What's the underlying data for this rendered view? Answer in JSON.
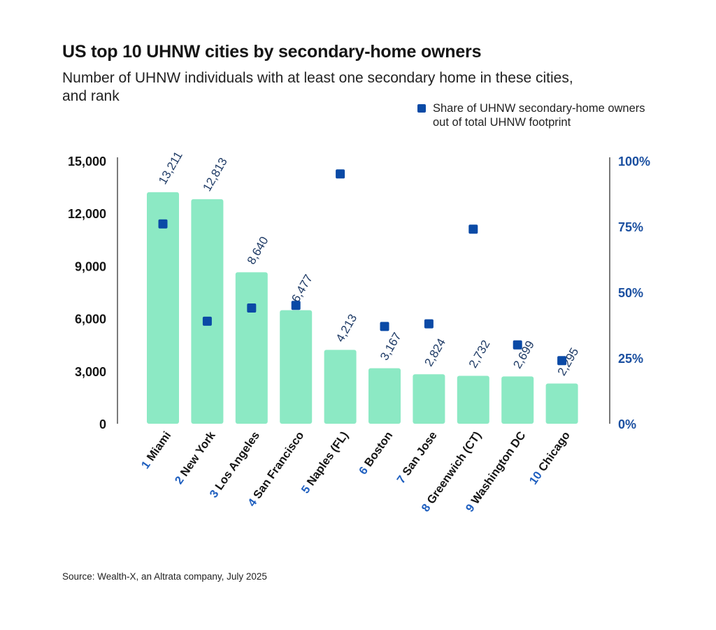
{
  "chart_data": {
    "type": "bar",
    "title": "US top 10 UHNW cities by secondary-home owners",
    "subtitle": "Number of UHNW individuals with at least one secondary home in these cities, and rank",
    "categories": [
      {
        "rank": "1",
        "name": "Miami"
      },
      {
        "rank": "2",
        "name": "New York"
      },
      {
        "rank": "3",
        "name": "Los Angeles"
      },
      {
        "rank": "4",
        "name": "San Francisco"
      },
      {
        "rank": "5",
        "name": "Naples (FL)"
      },
      {
        "rank": "6",
        "name": "Boston"
      },
      {
        "rank": "7",
        "name": "San Jose"
      },
      {
        "rank": "8",
        "name": "Greenwich (CT)"
      },
      {
        "rank": "9",
        "name": "Washington DC"
      },
      {
        "rank": "10",
        "name": "Chicago"
      }
    ],
    "bar_values": [
      13211,
      12813,
      8640,
      6477,
      4213,
      3167,
      2824,
      2732,
      2699,
      2295
    ],
    "bar_labels": [
      "13,211",
      "12,813",
      "8,640",
      "6,477",
      "4,213",
      "3,167",
      "2,824",
      "2,732",
      "2,699",
      "2,295"
    ],
    "share_series": {
      "name": "Share of UHNW secondary-home owners out of total UHNW footprint",
      "values": [
        76,
        39,
        44,
        45,
        95,
        37,
        38,
        74,
        30,
        24
      ]
    },
    "y_left": {
      "min": 0,
      "max": 15000,
      "ticks": [
        "0",
        "3,000",
        "6,000",
        "9,000",
        "12,000",
        "15,000"
      ]
    },
    "y_right": {
      "min": 0,
      "max": 100,
      "ticks": [
        "0%",
        "25%",
        "50%",
        "75%",
        "100%"
      ]
    },
    "legend_position": "top-right",
    "grid": false,
    "colors": {
      "bar": "#8ce9c4",
      "marker": "#0a4aa6",
      "rank": "#1f5fbf",
      "axis_text": "#151515",
      "right_axis_text": "#1a4fa0",
      "bar_label": "#1f3b66"
    }
  },
  "source": "Source: Wealth-X, an Altrata company, July 2025"
}
